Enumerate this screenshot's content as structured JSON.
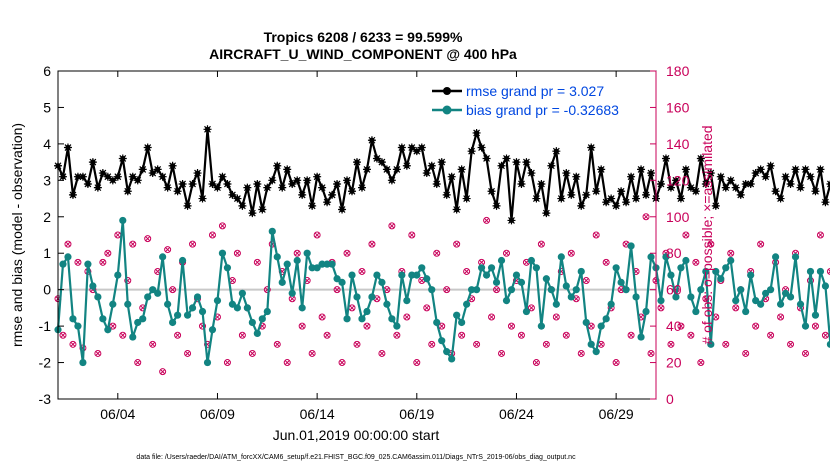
{
  "chart_data": {
    "type": "line",
    "title_line1": "Tropics 6208 / 6233 = 99.599%",
    "title_line2": "AIRCRAFT_U_WIND_COMPONENT @ 400 hPa",
    "xlabel": "Jun.01,2019 00:00:00 start",
    "ylabel_left": "rmse and bias (model - observation)",
    "ylabel_right": "# of obs: o=possible; ×=assimilated",
    "footer": "data file: /Users/raeder/DAI/ATM_forcXX/CAM6_setup/f.e21.FHIST_BGC.f09_025.CAM6assim.011/Diags_NTrS_2019-06/obs_diag_output.nc",
    "xlim": [
      1,
      31
    ],
    "ylim_left": [
      -3,
      6
    ],
    "ylim_right": [
      0,
      180
    ],
    "x_ticks": [
      4,
      9,
      14,
      19,
      24,
      29
    ],
    "x_tick_labels": [
      "06/04",
      "06/09",
      "06/14",
      "06/19",
      "06/24",
      "06/29"
    ],
    "y_left_ticks": [
      -3,
      -2,
      -1,
      0,
      1,
      2,
      3,
      4,
      5,
      6
    ],
    "y_right_ticks": [
      0,
      20,
      40,
      60,
      80,
      100,
      120,
      140,
      160,
      180
    ],
    "legend": [
      "rmse grand pr = 3.027",
      "bias grand pr = -0.32683"
    ],
    "legend_position": "top-right",
    "colors": {
      "rmse": "#000000",
      "bias": "#128482",
      "obs": "#c9005a",
      "legend_text": "#0047e0",
      "zero": "#c8c8c8"
    },
    "x_start": 1.0,
    "x_step": 0.25,
    "series": [
      {
        "name": "rmse",
        "values": [
          3.4,
          3.1,
          3.9,
          2.6,
          3.1,
          3.1,
          2.9,
          3.5,
          2.8,
          3.2,
          3.1,
          3.0,
          3.1,
          3.6,
          2.7,
          3.1,
          3.0,
          3.3,
          3.9,
          3.2,
          3.3,
          3.1,
          2.8,
          3.4,
          2.7,
          2.9,
          2.3,
          2.9,
          3.2,
          2.5,
          4.4,
          2.9,
          2.8,
          3.1,
          2.9,
          2.6,
          2.5,
          2.3,
          2.8,
          2.1,
          2.9,
          2.2,
          2.8,
          3.0,
          3.4,
          2.8,
          3.3,
          2.9,
          3.0,
          2.6,
          3.0,
          2.3,
          3.1,
          2.8,
          2.4,
          2.6,
          2.9,
          2.2,
          3.0,
          2.7,
          3.5,
          2.8,
          3.3,
          4.1,
          3.6,
          3.5,
          3.3,
          3.0,
          3.3,
          3.9,
          3.4,
          3.9,
          3.8,
          3.9,
          3.2,
          3.4,
          2.9,
          3.5,
          2.6,
          3.1,
          2.2,
          3.3,
          2.5,
          3.8,
          4.3,
          3.9,
          3.6,
          2.7,
          2.3,
          3.4,
          3.6,
          1.9,
          3.5,
          2.9,
          3.5,
          3.2,
          2.5,
          2.9,
          2.1,
          3.4,
          3.8,
          2.5,
          3.2,
          2.6,
          3.1,
          2.3,
          2.6,
          3.9,
          2.7,
          3.3,
          2.4,
          2.5,
          2.3,
          2.7,
          2.4,
          3.1,
          2.5,
          3.3,
          2.6,
          3.2,
          2.5,
          2.9,
          3.6,
          2.8,
          3.0,
          2.5,
          3.3,
          2.8,
          2.7,
          3.6,
          2.9,
          3.2,
          2.3,
          3.1,
          2.8,
          3.0,
          2.8,
          2.6,
          2.9,
          2.9,
          3.2,
          3.3,
          3.1,
          3.4,
          2.7,
          2.5,
          3.1,
          2.9,
          3.3,
          2.8,
          3.3,
          3.1,
          2.7,
          3.3,
          2.4,
          2.9,
          3.1,
          3.0,
          3.3,
          2.9,
          3.2,
          3.1,
          3.2,
          3.0,
          2.5,
          3.3,
          3.0,
          3.2,
          3.3,
          3.0,
          2.2,
          2.6,
          3.3,
          2.9
        ]
      },
      {
        "name": "bias",
        "values": [
          -1.1,
          0.7,
          0.9,
          -0.8,
          -1.0,
          -2.0,
          0.7,
          0.1,
          -0.2,
          -0.8,
          -1.1,
          -0.4,
          0.4,
          1.9,
          -0.4,
          -1.3,
          -0.9,
          -0.8,
          -0.2,
          0.0,
          -0.1,
          0.9,
          -0.4,
          -0.9,
          -0.7,
          0.8,
          -0.7,
          -0.5,
          -0.2,
          -0.6,
          -2.0,
          -1.1,
          -0.3,
          1.0,
          0.6,
          -0.4,
          -0.5,
          -0.1,
          -0.5,
          -0.9,
          -1.2,
          -0.8,
          -0.6,
          1.6,
          0.9,
          0.2,
          0.7,
          -0.1,
          0.8,
          -0.5,
          1.0,
          0.6,
          0.6,
          0.7,
          0.7,
          0.7,
          0.3,
          0.2,
          -0.8,
          0.4,
          -0.2,
          -0.8,
          -0.6,
          -0.2,
          0.4,
          0.2,
          -0.4,
          -0.8,
          -1.0,
          0.4,
          -0.3,
          0.4,
          0.4,
          0.6,
          0.3,
          0.0,
          -0.9,
          -1.4,
          -1.7,
          -1.9,
          -0.7,
          -0.9,
          -0.4,
          0.0,
          0.0,
          0.6,
          0.4,
          0.6,
          0.2,
          0.8,
          -0.3,
          0.0,
          0.4,
          0.2,
          -0.6,
          0.8,
          0.6,
          -1.0,
          0.3,
          0.0,
          -0.4,
          0.9,
          0.1,
          -0.2,
          0.0,
          0.5,
          -0.9,
          -1.5,
          -1.7,
          -1.0,
          -0.8,
          -0.4,
          0.6,
          0.2,
          0.0,
          1.2,
          -0.2,
          -1.3,
          -0.6,
          0.9,
          0.6,
          -0.3,
          0.9,
          0.4,
          -0.2,
          0.6,
          0.8,
          -0.2,
          -0.6,
          0.0,
          0.5,
          -1.5,
          0.5,
          0.3,
          0.6,
          0.8,
          -0.3,
          0.0,
          -0.6,
          0.4,
          -0.3,
          -0.4,
          -0.1,
          0.0,
          0.9,
          -0.4,
          -0.1,
          -0.2,
          0.9,
          -0.4,
          -1.0,
          0.5,
          -0.7,
          0.5,
          0.1,
          -1.5,
          -1.9,
          -2.3,
          -0.5,
          0.1,
          -0.6,
          0.0,
          0.5,
          0.4,
          -0.6,
          0.3,
          0.2,
          -0.2,
          0.6,
          -0.9,
          0.5,
          0.6,
          0.6,
          -1.8,
          0.7,
          0.6
        ]
      }
    ],
    "obs_counts": [
      55,
      35,
      85,
      30,
      75,
      28,
      70,
      60,
      25,
      75,
      80,
      40,
      90,
      35,
      65,
      85,
      20,
      50,
      88,
      30,
      70,
      15,
      82,
      60,
      35,
      75,
      25,
      85,
      55,
      40,
      30,
      90,
      45,
      95,
      20,
      65,
      80,
      35,
      50,
      25,
      75,
      40,
      60,
      85,
      30,
      70,
      20,
      55,
      80,
      40,
      65,
      25,
      90,
      45,
      35,
      75,
      60,
      20,
      80,
      50,
      30,
      70,
      40,
      85,
      55,
      25,
      60,
      95,
      35,
      70,
      45,
      90,
      20,
      65,
      50,
      30,
      80,
      40,
      60,
      25,
      85,
      35,
      70,
      55,
      30,
      75,
      98,
      45,
      60,
      25,
      80,
      40,
      65,
      35,
      75,
      50,
      20,
      85,
      30,
      60,
      45,
      70,
      35,
      80,
      55,
      25,
      65,
      40,
      90,
      30,
      75,
      50,
      20,
      60,
      85,
      35,
      70,
      45,
      100,
      25,
      65,
      50,
      80,
      30,
      60,
      40,
      90,
      35,
      75,
      20,
      55,
      85,
      45,
      65,
      30,
      80,
      50,
      60,
      25,
      70,
      40,
      85,
      55,
      35,
      75,
      45,
      60,
      30,
      80,
      50,
      25,
      65,
      40,
      90,
      35,
      70,
      55,
      30,
      60,
      45,
      85,
      40,
      75,
      35,
      60,
      50,
      80,
      30,
      70,
      45,
      0
    ]
  }
}
